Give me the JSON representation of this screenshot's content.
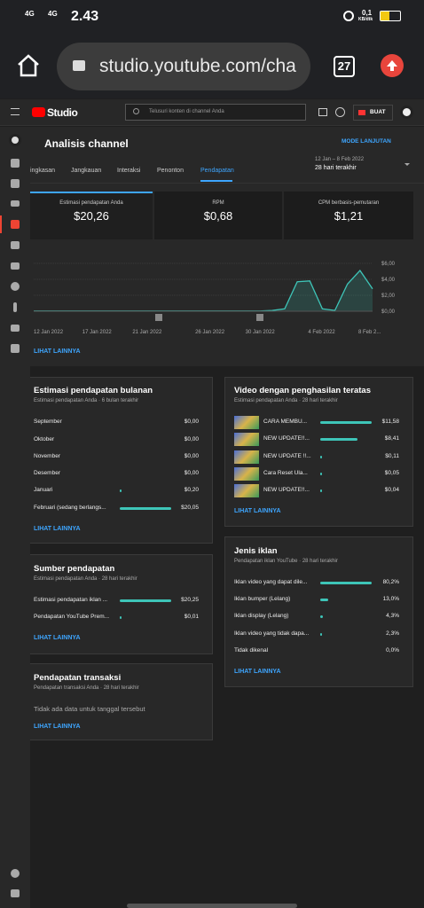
{
  "status_bar": {
    "network_1": "4G",
    "network_2": "4G",
    "time": "2.43",
    "speed": "0,1",
    "speed_unit": "KB/dtk"
  },
  "browser": {
    "url": "studio.youtube.com/cha",
    "tab_count": "27"
  },
  "studio_header": {
    "logo": "Studio",
    "search_placeholder": "Telusuri konten di channel Anda",
    "create_button": "BUAT"
  },
  "page": {
    "title": "Analisis channel",
    "advanced_mode": "MODE LANJUTAN",
    "tabs": [
      "ingkasan",
      "Jangkauan",
      "Interaksi",
      "Penonton",
      "Pendapatan"
    ],
    "selected_tab": 4,
    "date_range": "12 Jan – 8 Feb 2022",
    "date_period": "28 hari terakhir"
  },
  "metrics": [
    {
      "label": "Estimasi pendapatan Anda",
      "value": "$20,26"
    },
    {
      "label": "RPM",
      "value": "$0,68"
    },
    {
      "label": "CPM berbasis-pemutaran",
      "value": "$1,21"
    }
  ],
  "revenue_chart": {
    "type": "line",
    "color": "#3ec5b8",
    "categories": [
      "12 Jan 2022",
      null,
      null,
      null,
      null,
      "17 Jan 2022",
      null,
      null,
      null,
      "21 Jan 2022",
      null,
      null,
      null,
      null,
      "26 Jan 2022",
      null,
      null,
      null,
      "30 Jan 2022",
      null,
      null,
      null,
      null,
      "4 Feb 2022",
      null,
      null,
      null,
      "8 Feb 2..."
    ],
    "values": [
      0.02,
      0.02,
      0.02,
      0.02,
      0.02,
      0.02,
      0.02,
      0.02,
      0.02,
      0.02,
      0.02,
      0.02,
      0.02,
      0.02,
      0.02,
      0.02,
      0.02,
      0.02,
      0.02,
      0.1,
      0.3,
      3.7,
      3.8,
      0.3,
      0.1,
      3.4,
      5.1,
      2.8
    ],
    "ylim": [
      0,
      6
    ],
    "yticks": [
      {
        "value": 6,
        "label": "$6,00"
      },
      {
        "value": 4,
        "label": "$4,00"
      },
      {
        "value": 2,
        "label": "$2,00"
      },
      {
        "value": 0,
        "label": "$0,00"
      }
    ],
    "grid": true,
    "link": "LIHAT LAINNYA"
  },
  "cards": {
    "monthly_revenue": {
      "title": "Estimasi pendapatan bulanan",
      "subtitle": "Estimasi pendapatan Anda · 6 bulan terakhir",
      "rows": [
        {
          "label": "September",
          "value": 0,
          "value_label": "$0,00"
        },
        {
          "label": "Oktober",
          "value": 0,
          "value_label": "$0,00"
        },
        {
          "label": "November",
          "value": 0,
          "value_label": "$0,00"
        },
        {
          "label": "Desember",
          "value": 0,
          "value_label": "$0,00"
        },
        {
          "label": "Januari",
          "value": 0.2,
          "value_label": "$0,20"
        },
        {
          "label": "Februari (sedang berlangs...",
          "value": 20.05,
          "value_label": "$20,05"
        }
      ],
      "link": "LIHAT LAINNYA"
    },
    "top_videos": {
      "title": "Video dengan penghasilan teratas",
      "subtitle": "Estimasi pendapatan Anda · 28 hari terakhir",
      "rows": [
        {
          "label": "CARA MEMBU...",
          "value": 11.58,
          "value_label": "$11,58"
        },
        {
          "label": "NEW UPDATE!!...",
          "value": 8.41,
          "value_label": "$8,41"
        },
        {
          "label": "NEW UPDATE !!...",
          "value": 0.11,
          "value_label": "$0,11"
        },
        {
          "label": "Cara Reset Ula...",
          "value": 0.05,
          "value_label": "$0,05"
        },
        {
          "label": "NEW UPDATE!!...",
          "value": 0.04,
          "value_label": "$0,04"
        }
      ],
      "link": "LIHAT LAINNYA"
    },
    "revenue_sources": {
      "title": "Sumber pendapatan",
      "subtitle": "Estimasi pendapatan Anda · 28 hari terakhir",
      "rows": [
        {
          "label": "Estimasi pendapatan iklan ...",
          "value": 20.25,
          "value_label": "$20,25"
        },
        {
          "label": "Pendapatan YouTube Prem...",
          "value": 0.01,
          "value_label": "$0,01"
        }
      ],
      "link": "LIHAT LAINNYA"
    },
    "ad_types": {
      "title": "Jenis iklan",
      "subtitle": "Pendapatan iklan YouTube · 28 hari terakhir",
      "rows": [
        {
          "label": "Iklan video yang dapat dile...",
          "value": 80.2,
          "value_label": "80,2%"
        },
        {
          "label": "Iklan bumper (Lelang)",
          "value": 13.0,
          "value_label": "13,0%"
        },
        {
          "label": "Iklan display (Lelang)",
          "value": 4.3,
          "value_label": "4,3%"
        },
        {
          "label": "Iklan video yang tidak dapa...",
          "value": 2.3,
          "value_label": "2,3%"
        },
        {
          "label": "Tidak dikenal",
          "value": 0,
          "value_label": "0,0%"
        }
      ],
      "link": "LIHAT LAINNYA"
    },
    "transactions": {
      "title": "Pendapatan transaksi",
      "subtitle": "Pendapatan transaksi Anda · 28 hari terakhir",
      "empty_message": "Tidak ada data untuk tanggal tersebut",
      "link": "LIHAT LAINNYA"
    }
  }
}
